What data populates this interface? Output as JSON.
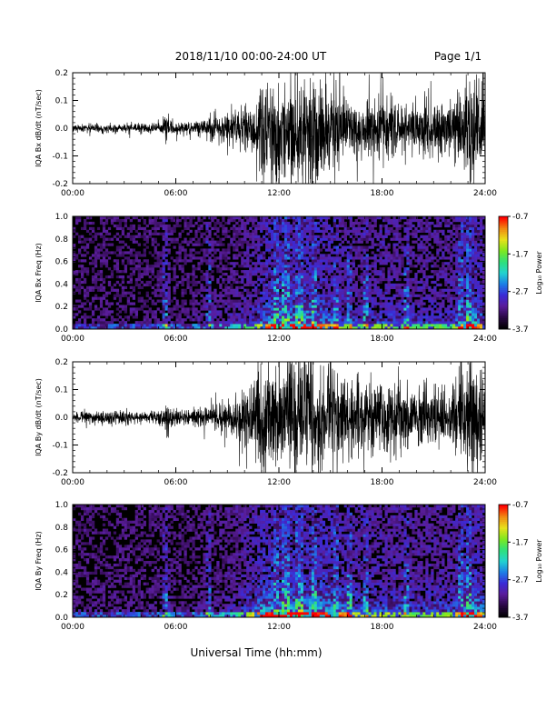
{
  "header": {
    "title": "2018/11/10   00:00-24:00 UT",
    "page": "Page 1/1"
  },
  "footer": {
    "xlabel": "Universal Time (hh:mm)"
  },
  "colors": {
    "trace": "#000000",
    "colormap": [
      "#000000",
      "#2a0845",
      "#5a1d9a",
      "#3b2ad6",
      "#1d7fe6",
      "#22d3d0",
      "#2fe07a",
      "#7ee81f",
      "#e8e21b",
      "#f08a12",
      "#ff0000"
    ]
  },
  "chart_data": [
    {
      "type": "line",
      "panel": "bx-dbdt",
      "ylabel": "IQA Bx dB/dt (nT/sec)",
      "xlim": [
        0,
        24
      ],
      "ylim": [
        -0.2,
        0.2
      ],
      "x_ticks": [
        "00:00",
        "06:00",
        "12:00",
        "18:00",
        "24:00"
      ],
      "y_ticks": [
        "-0.2",
        "-0.1",
        "0.0",
        "0.1",
        "0.2"
      ],
      "envelope": {
        "x_hours": [
          0,
          2,
          4,
          5.2,
          5.5,
          5.8,
          6.5,
          8,
          9.5,
          10.5,
          11,
          11.5,
          12,
          12.5,
          13,
          14,
          15,
          16,
          17,
          18,
          19,
          20,
          21,
          22,
          22.5,
          23,
          23.5,
          24
        ],
        "amplitude": [
          0.015,
          0.015,
          0.015,
          0.02,
          0.07,
          0.02,
          0.02,
          0.04,
          0.06,
          0.1,
          0.15,
          0.2,
          0.2,
          0.2,
          0.2,
          0.2,
          0.15,
          0.1,
          0.1,
          0.12,
          0.1,
          0.09,
          0.1,
          0.09,
          0.15,
          0.2,
          0.2,
          0.12
        ]
      }
    },
    {
      "type": "heatmap",
      "panel": "bx-spectrogram",
      "ylabel": "IQA Bx Freq (Hz)",
      "xlim": [
        0,
        24
      ],
      "ylim": [
        0,
        1.0
      ],
      "x_ticks": [
        "00:00",
        "06:00",
        "12:00",
        "18:00",
        "24:00"
      ],
      "y_ticks": [
        "0.0",
        "0.2",
        "0.4",
        "0.6",
        "0.8",
        "1.0"
      ],
      "colorbar": {
        "label": "Log₁₀ Power",
        "ticks": [
          "-0.7",
          "-1.7",
          "-2.7",
          "-3.7"
        ],
        "range": [
          -3.7,
          -0.7
        ]
      }
    },
    {
      "type": "line",
      "panel": "by-dbdt",
      "ylabel": "IQA By dB/dt (nT/sec)",
      "xlim": [
        0,
        24
      ],
      "ylim": [
        -0.2,
        0.2
      ],
      "x_ticks": [
        "00:00",
        "06:00",
        "12:00",
        "18:00",
        "24:00"
      ],
      "y_ticks": [
        "-0.2",
        "-0.1",
        "0.0",
        "0.1",
        "0.2"
      ],
      "envelope": {
        "x_hours": [
          0,
          2,
          4,
          5.2,
          5.5,
          5.8,
          6.5,
          8,
          9.5,
          10.5,
          11,
          11.5,
          12,
          12.5,
          13,
          14,
          15,
          16,
          17,
          18,
          19,
          20,
          21,
          22,
          22.5,
          23,
          23.5,
          24
        ],
        "amplitude": [
          0.02,
          0.025,
          0.02,
          0.025,
          0.07,
          0.03,
          0.02,
          0.04,
          0.07,
          0.14,
          0.2,
          0.2,
          0.2,
          0.2,
          0.2,
          0.2,
          0.2,
          0.15,
          0.12,
          0.13,
          0.12,
          0.1,
          0.12,
          0.11,
          0.16,
          0.2,
          0.2,
          0.13
        ]
      }
    },
    {
      "type": "heatmap",
      "panel": "by-spectrogram",
      "ylabel": "IQA By Freq (Hz)",
      "xlim": [
        0,
        24
      ],
      "ylim": [
        0,
        1.0
      ],
      "x_ticks": [
        "00:00",
        "06:00",
        "12:00",
        "18:00",
        "24:00"
      ],
      "y_ticks": [
        "0.0",
        "0.2",
        "0.4",
        "0.6",
        "0.8",
        "1.0"
      ],
      "colorbar": {
        "label": "Log₁₀ Power",
        "ticks": [
          "-0.7",
          "-1.7",
          "-2.7",
          "-3.7"
        ],
        "range": [
          -3.7,
          -0.7
        ]
      }
    }
  ]
}
